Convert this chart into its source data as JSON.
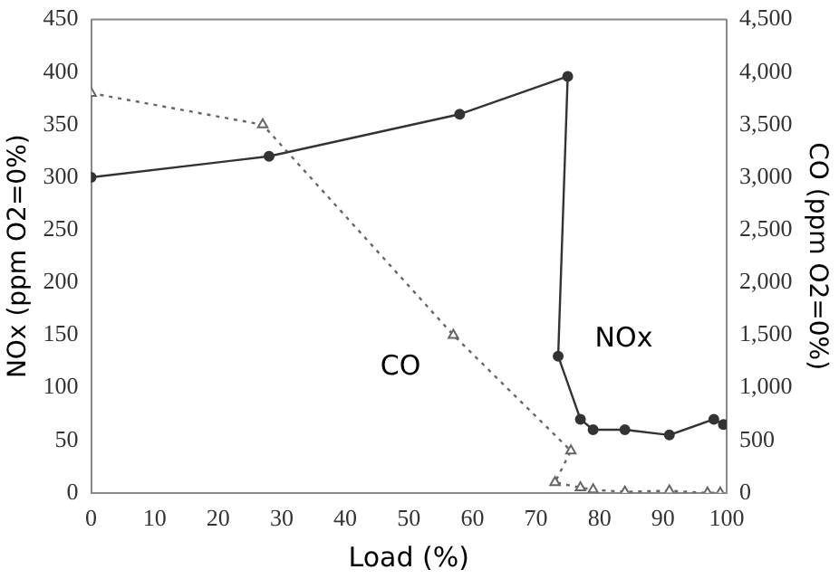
{
  "chart_data": {
    "type": "line",
    "xlabel": "Load (%)",
    "ylabel": "NOx (ppm O2=0%)",
    "y2label": "CO (ppm O2=0%)",
    "xlim": [
      0,
      100
    ],
    "xticks": [
      0,
      10,
      20,
      30,
      40,
      50,
      60,
      70,
      80,
      90,
      100
    ],
    "ylim": [
      0,
      450
    ],
    "yticks": [
      0,
      50,
      100,
      150,
      200,
      250,
      300,
      350,
      400,
      450
    ],
    "y2lim": [
      0,
      4500
    ],
    "y2ticks": [
      0,
      {
        "value": 500,
        "label": "500"
      },
      {
        "value": 1000,
        "label": "1,000"
      },
      {
        "value": 1500,
        "label": "1,500"
      },
      {
        "value": 2000,
        "label": "2,000"
      },
      {
        "value": 2500,
        "label": "2,500"
      },
      {
        "value": 3000,
        "label": "3,000"
      },
      {
        "value": 3500,
        "label": "3,500"
      },
      {
        "value": 4000,
        "label": "4,000"
      },
      {
        "value": 4500,
        "label": "4,500"
      }
    ],
    "grid": false,
    "legend": false,
    "series": [
      {
        "name": "NOx",
        "color": "#333333",
        "marker": "circle",
        "line_style": "solid",
        "x": [
          0,
          28,
          58,
          75,
          73.5,
          77,
          79,
          84,
          91,
          98,
          99.5
        ],
        "values": [
          300,
          320,
          360,
          396,
          130,
          70,
          60,
          60,
          55,
          70,
          65
        ]
      },
      {
        "name": "CO",
        "color": "#666666",
        "marker": "triangle",
        "line_style": "dotted",
        "axis": "y2",
        "x": [
          0,
          27,
          57,
          75.5,
          73,
          77,
          79,
          84,
          91,
          97,
          99
        ],
        "values": [
          3800,
          3500,
          1500,
          400,
          100,
          50,
          30,
          10,
          20,
          0,
          0
        ]
      }
    ]
  }
}
